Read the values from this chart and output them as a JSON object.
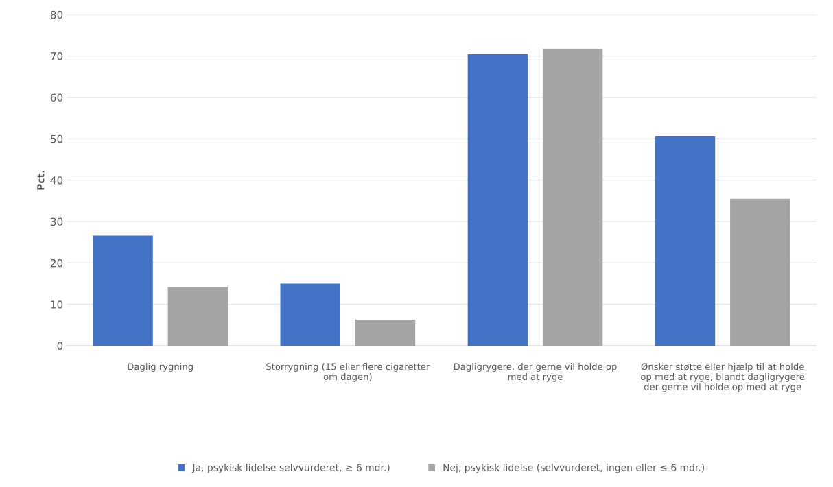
{
  "chart_data": {
    "type": "bar",
    "ylabel": "Pct.",
    "categories": [
      "Daglig rygning",
      "Storrygning (15 eller flere cigaretter\nom dagen)",
      "Dagligrygere, der gerne vil holde op\nmed at ryge",
      "Ønsker støtte eller hjælp til at holde\nop med at ryge, blandt dagligrygere\nder gerne vil holde op med at ryge"
    ],
    "series": [
      {
        "name": "Ja, psykisk lidelse selvvurderet, ≥ 6 mdr.)",
        "color": "#4472c4",
        "values": [
          26.6,
          15.0,
          70.5,
          50.6
        ]
      },
      {
        "name": "Nej, psykisk lidelse (selvvurderet, ingen eller ≤ 6 mdr.)",
        "color": "#a5a5a5",
        "values": [
          14.2,
          6.3,
          71.7,
          35.5
        ]
      }
    ],
    "ylim": [
      0,
      80
    ],
    "yticks": [
      0,
      10,
      20,
      30,
      40,
      50,
      60,
      70,
      80
    ],
    "grid": "y",
    "legend": "bottom"
  }
}
